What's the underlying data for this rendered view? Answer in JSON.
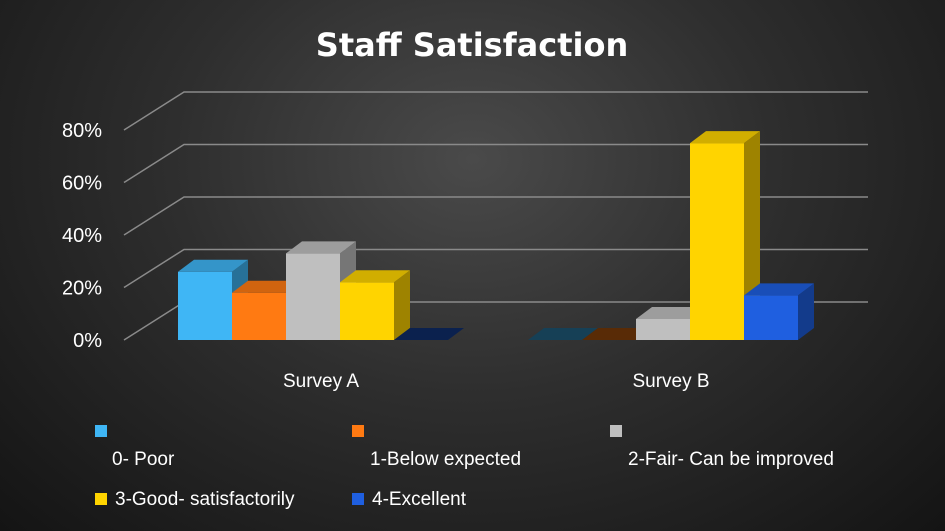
{
  "chart_data": {
    "type": "bar",
    "title": "Staff Satisfaction",
    "categories": [
      "Survey A",
      "Survey B"
    ],
    "series": [
      {
        "name": "0- Poor",
        "color": "#3fb6f5",
        "values": [
          0.26,
          0
        ]
      },
      {
        "name": "1-Below expected",
        "color": "#ff7a12",
        "values": [
          0.18,
          0
        ]
      },
      {
        "name": "2-Fair- Can be improved",
        "color": "#bfbfbf",
        "values": [
          0.33,
          0.08
        ]
      },
      {
        "name": "3-Good- satisfactorily",
        "color": "#ffd400",
        "values": [
          0.22,
          0.75
        ]
      },
      {
        "name": "4-Excellent",
        "color": "#1f5fe0",
        "values": [
          0,
          0.17
        ]
      }
    ],
    "yticks": [
      "0%",
      "20%",
      "40%",
      "60%",
      "80%"
    ],
    "ylim": [
      0,
      0.8
    ],
    "grid": true,
    "legend_position": "bottom",
    "bar_style": "3d"
  }
}
